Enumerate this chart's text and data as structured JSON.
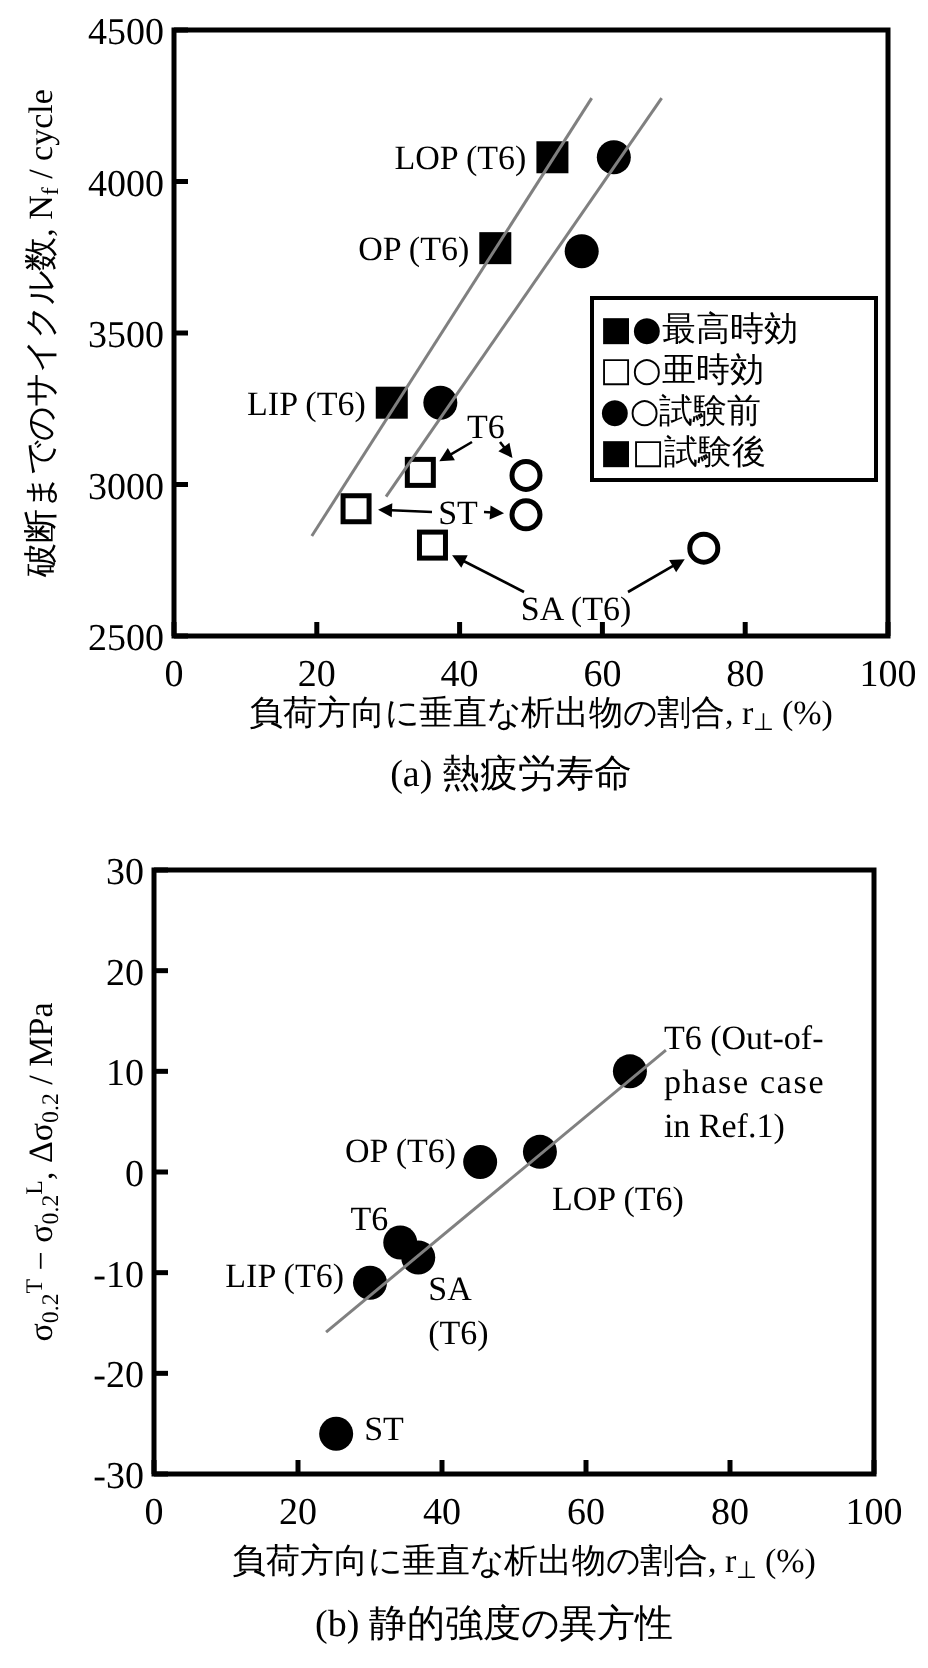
{
  "chart_data": [
    {
      "type": "scatter",
      "title": "(a) 熱疲労寿命",
      "xlabel": "負荷方向に垂直な析出物の割合, r$_{⊥}$ (%)",
      "ylabel": "破断までのサイクル数, N$_{f}$ / cycle",
      "xlim": [
        0,
        100
      ],
      "xticks": [
        0,
        20,
        40,
        60,
        80,
        100
      ],
      "ylim": [
        2500,
        4500
      ],
      "yticks": [
        2500,
        3000,
        3500,
        4000,
        4500
      ],
      "grid": false,
      "series": [
        {
          "marker": "square",
          "color": "#000000",
          "x": [
            53,
            45,
            30.5
          ],
          "values": [
            4080,
            3780,
            3270
          ]
        },
        {
          "marker": "circle",
          "color": "#000000",
          "x": [
            61.6,
            57.1,
            37.3
          ],
          "values": [
            4080,
            3770,
            3270
          ]
        },
        {
          "marker": "square",
          "color": "#ffffff",
          "x": [
            34.5,
            25.5,
            36.2
          ],
          "values": [
            3040,
            2920,
            2800
          ]
        },
        {
          "marker": "circle",
          "color": "#ffffff",
          "x": [
            49.3,
            49.3,
            74.2
          ],
          "values": [
            3030,
            2900,
            2790
          ]
        },
        {
          "type": "line",
          "marker": "none",
          "color": "#808080",
          "x": [
            19.3,
            58.5
          ],
          "values": [
            2830,
            4275
          ]
        },
        {
          "type": "line",
          "marker": "none",
          "color": "#808080",
          "x": [
            29.7,
            68.3
          ],
          "values": [
            2960,
            4275
          ]
        }
      ],
      "annotations": [
        {
          "text": "LOP (T6)",
          "x": 53,
          "y": 4080
        },
        {
          "text": "OP (T6)",
          "x": 45,
          "y": 3780
        },
        {
          "text": "LIP (T6)",
          "x": 30.5,
          "y": 3270
        },
        "T6",
        "ST",
        "SA (T6)",
        "■●最高時効",
        "□○亜時効",
        "●○試験前",
        "■□試験後"
      ]
    },
    {
      "type": "scatter",
      "title": "(b) 静的強度の異方性",
      "xlabel": "負荷方向に垂直な析出物の割合, r$_{⊥}$ (%)",
      "ylabel": "σ$_{0.2}$$^{T}$ − σ$_{0.2}$$^{L}$, Δσ$_{0.2}$ / MPa",
      "xlim": [
        0,
        100
      ],
      "xticks": [
        0,
        20,
        40,
        60,
        80,
        100
      ],
      "ylim": [
        -30,
        30
      ],
      "yticks": [
        -30,
        -20,
        -10,
        0,
        10,
        20,
        30
      ],
      "grid": false,
      "series": [
        {
          "marker": "circle",
          "color": "#000000",
          "x": [
            66.1,
            53.6,
            45.3,
            34.2,
            36.7,
            30,
            25.3
          ],
          "values": [
            10,
            2,
            1,
            -7,
            -8.5,
            -11,
            -26
          ]
        },
        {
          "type": "line",
          "marker": "none",
          "color": "#808080",
          "x": [
            23.9,
            71.1
          ],
          "values": [
            -15.9,
            12.1
          ]
        }
      ],
      "annotations": [
        {
          "text": "T6 (Out-of-phase case in Ref.1)",
          "x": 66.1,
          "y": 10
        },
        {
          "text": "LOP (T6)",
          "x": 53.6,
          "y": 2
        },
        {
          "text": "OP (T6)",
          "x": 45.3,
          "y": 1
        },
        {
          "text": "T6",
          "x": 34.2,
          "y": -7
        },
        {
          "text": "SA (T6)",
          "x": 36.7,
          "y": -8.5
        },
        {
          "text": "LIP (T6)",
          "x": 30,
          "y": -11
        },
        {
          "text": "ST",
          "x": 25.3,
          "y": -26
        }
      ]
    }
  ]
}
